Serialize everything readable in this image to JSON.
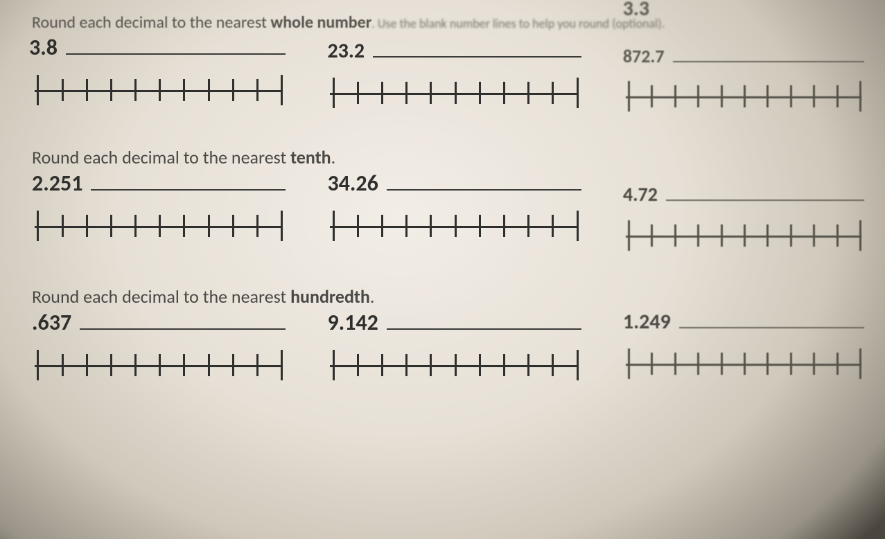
{
  "top_stray_number": "3.3",
  "sections": [
    {
      "instruction_pre": "Round each decimal to the nearest ",
      "instruction_bold": "whole number",
      "instruction_post": ". Use the blank number lines to help you round (optional).",
      "items": [
        {
          "value": "3.8"
        },
        {
          "value": "23.2"
        },
        {
          "value": "872.7"
        }
      ]
    },
    {
      "instruction_pre": "Round each decimal to the nearest ",
      "instruction_bold": "tenth",
      "instruction_post": ".",
      "items": [
        {
          "value": "2.251"
        },
        {
          "value": "34.26"
        },
        {
          "value": "4.72"
        }
      ]
    },
    {
      "instruction_pre": "Round each decimal to the nearest ",
      "instruction_bold": "hundredth",
      "instruction_post": ".",
      "items": [
        {
          "value": ".637"
        },
        {
          "value": "9.142"
        },
        {
          "value": "1.249"
        }
      ]
    }
  ],
  "numberline": {
    "ticks": 11,
    "stroke_color": "#2f2f2d"
  },
  "colors": {
    "text": "#3a3a38",
    "paper_light": "#f2ede6",
    "paper_shadow": "#9a9488"
  }
}
